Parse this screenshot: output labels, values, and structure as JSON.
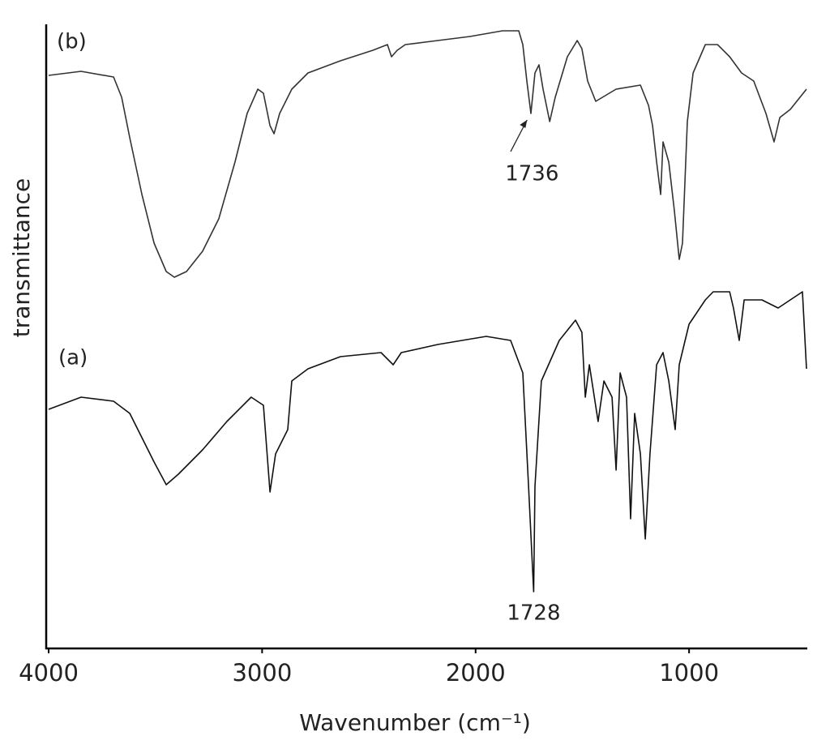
{
  "chart_data": {
    "type": "line",
    "xlabel": "Wavenumber (cm⁻¹)",
    "ylabel": "transmittance",
    "xlim": [
      4000,
      450
    ],
    "ylim": [
      0,
      77
    ],
    "xticks": [
      4000,
      3000,
      2000,
      1000
    ],
    "series": [
      {
        "name": "(b)",
        "color": "#333333",
        "x": [
          4000,
          3848,
          3696,
          3658,
          3620,
          3563,
          3506,
          3449,
          3411,
          3354,
          3279,
          3203,
          3127,
          3070,
          3020,
          2994,
          2963,
          2944,
          2918,
          2861,
          2785,
          2633,
          2481,
          2413,
          2394,
          2367,
          2329,
          2177,
          2026,
          1874,
          1798,
          1779,
          1760,
          1741,
          1722,
          1703,
          1684,
          1653,
          1627,
          1570,
          1524,
          1502,
          1475,
          1437,
          1342,
          1228,
          1190,
          1171,
          1152,
          1133,
          1122,
          1095,
          1069,
          1046,
          1031,
          1008,
          981,
          924,
          867,
          810,
          754,
          697,
          640,
          602,
          575,
          526,
          450
        ],
        "values": [
          70.7,
          71.2,
          70.5,
          68,
          63,
          56,
          50,
          46.5,
          45.8,
          46.5,
          49,
          53,
          60,
          66,
          69,
          68.5,
          64.5,
          63.5,
          66,
          69,
          71,
          72.5,
          73.8,
          74.5,
          73,
          73.8,
          74.5,
          75,
          75.5,
          76.2,
          76.2,
          74.5,
          70,
          66,
          71,
          72,
          69,
          65,
          68,
          73,
          75,
          74,
          70,
          67.5,
          69,
          69.5,
          67,
          64.5,
          60,
          56,
          62.5,
          60,
          54,
          48,
          50,
          65,
          71,
          74.5,
          74.5,
          73,
          71,
          70,
          66,
          62.5,
          65.5,
          66.5,
          69
        ]
      },
      {
        "name": "(a)",
        "color": "#111111",
        "x": [
          4000,
          3848,
          3696,
          3620,
          3563,
          3506,
          3449,
          3392,
          3279,
          3165,
          3051,
          2994,
          2963,
          2937,
          2880,
          2861,
          2785,
          2633,
          2443,
          2386,
          2348,
          2177,
          1950,
          1836,
          1779,
          1752,
          1728,
          1722,
          1692,
          1608,
          1532,
          1502,
          1486,
          1467,
          1426,
          1399,
          1361,
          1342,
          1323,
          1293,
          1274,
          1255,
          1228,
          1205,
          1183,
          1152,
          1122,
          1095,
          1065,
          1046,
          1000,
          924,
          887,
          810,
          792,
          765,
          742,
          659,
          583,
          469,
          450
        ],
        "values": [
          29.5,
          31,
          30.5,
          29,
          26,
          23,
          20.2,
          21.5,
          24.5,
          28,
          31,
          30,
          19.3,
          24,
          27,
          33,
          34.5,
          36,
          36.5,
          35,
          36.5,
          37.5,
          38.5,
          38,
          34,
          20,
          7,
          20,
          33,
          38,
          40.5,
          39,
          31,
          35,
          28,
          33,
          31,
          22,
          34,
          31,
          16,
          29,
          24,
          13.5,
          24,
          35,
          36.5,
          33,
          27,
          35,
          40,
          43,
          44,
          44,
          42,
          38,
          43,
          43,
          42,
          44,
          34.5
        ]
      }
    ],
    "annotations": [
      {
        "x": 1736,
        "text": "1736",
        "arrow": true
      },
      {
        "x": 1728,
        "text": "1728"
      }
    ]
  }
}
